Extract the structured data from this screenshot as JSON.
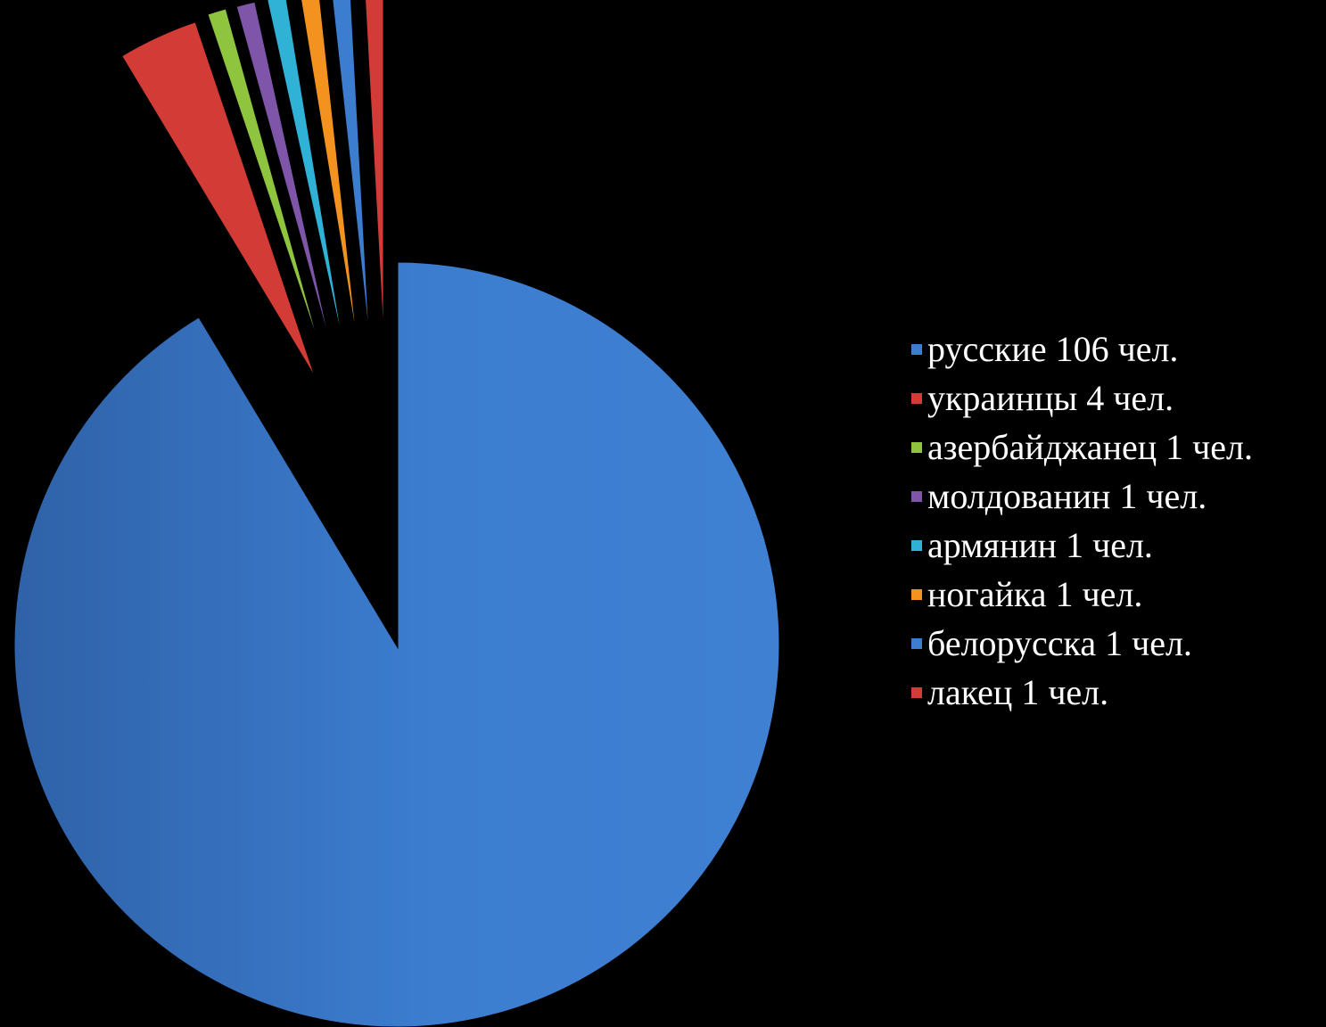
{
  "chart_data": {
    "type": "pie",
    "categories": [
      "русские 106 чел.",
      "украинцы 4 чел.",
      "азербайджанец 1 чел.",
      "молдованин 1 чел.",
      "армянин 1 чел.",
      "ногайка 1 чел.",
      "белорусска 1 чел.",
      "лакец 1 чел."
    ],
    "values": [
      106,
      4,
      1,
      1,
      1,
      1,
      1,
      1
    ],
    "colors": [
      "#3c7dd0",
      "#d23b36",
      "#8fc43f",
      "#7e55a8",
      "#2fb2d6",
      "#f3921e",
      "#3c7dd0",
      "#d23b36"
    ],
    "title": "",
    "legend_position": "right",
    "exploded": true
  }
}
